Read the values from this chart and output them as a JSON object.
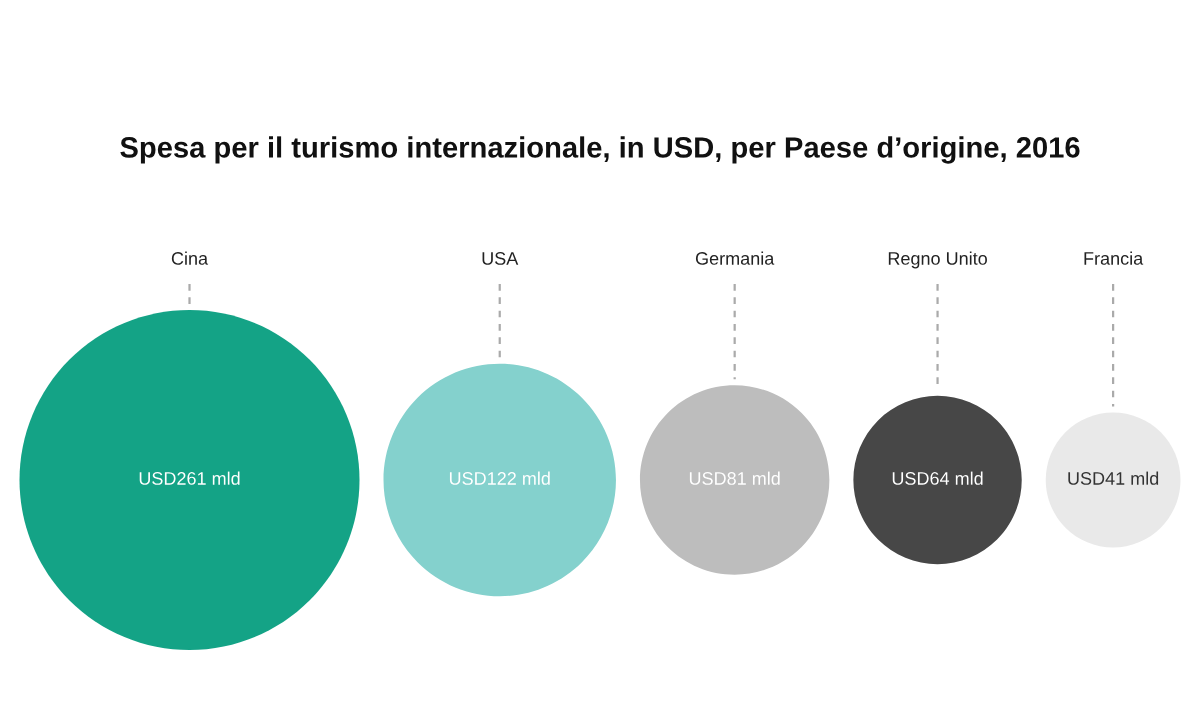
{
  "chart_data": {
    "type": "other",
    "title": "Spesa per il turismo internazionale, in USD, per Paese d’origine, 2016",
    "categories": [
      "Cina",
      "USA",
      "Germania",
      "Regno Unito",
      "Francia"
    ],
    "values": [
      261,
      122,
      81,
      64,
      41
    ],
    "value_labels": [
      "USD261 mld",
      "USD122 mld",
      "USD81 mld",
      "USD64 mld",
      "USD41 mld"
    ],
    "colors": [
      "#14a386",
      "#84d1cd",
      "#bdbdbd",
      "#474747",
      "#e9e9e9"
    ]
  }
}
